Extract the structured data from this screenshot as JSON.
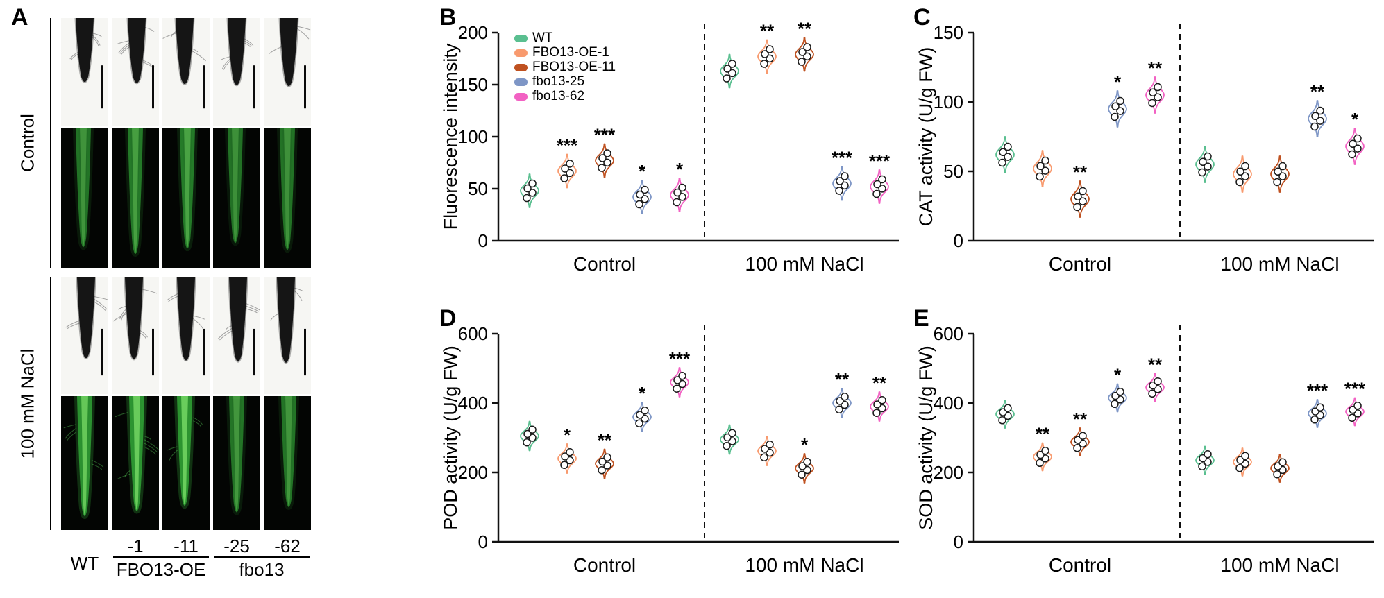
{
  "panels": {
    "A": {
      "label": "A",
      "conditions": [
        "Control",
        "100 mM NaCl"
      ],
      "col_labels": [
        "WT",
        "-1",
        "-11",
        "-25",
        "-62"
      ],
      "group_labels": [
        "FBO13-OE",
        "fbo13"
      ]
    },
    "B": {
      "label": "B"
    },
    "C": {
      "label": "C"
    },
    "D": {
      "label": "D"
    },
    "E": {
      "label": "E"
    }
  },
  "series": [
    {
      "label": "WT",
      "color": "#5abf90"
    },
    {
      "label": "FBO13-OE-1",
      "color": "#f89a6e"
    },
    {
      "label": "FBO13-OE-11",
      "color": "#bf5120"
    },
    {
      "label": "fbo13-25",
      "color": "#7e96c6"
    },
    {
      "label": "fbo13-62",
      "color": "#f261c3"
    }
  ],
  "chart_data": [
    {
      "panel": "B",
      "type": "violin",
      "legend": true,
      "ylabel": "Fluorescence intensity",
      "ylim": [
        0,
        200
      ],
      "yticks": [
        0,
        50,
        100,
        150,
        200
      ],
      "spread": 16,
      "group_labels": [
        "Control",
        "100 mM NaCl"
      ],
      "groups": [
        {
          "label": "Control",
          "values": [
            48,
            67,
            77,
            42,
            44
          ],
          "sig": [
            "",
            "***",
            "***",
            "*",
            "*"
          ]
        },
        {
          "label": "100 mM NaCl",
          "values": [
            163,
            177,
            179,
            55,
            52
          ],
          "sig": [
            "",
            "**",
            "**",
            "***",
            "***"
          ]
        }
      ]
    },
    {
      "panel": "C",
      "type": "violin",
      "legend": false,
      "ylabel": "CAT activity (U/g FW)",
      "ylim": [
        0,
        150
      ],
      "yticks": [
        0,
        50,
        100,
        150
      ],
      "spread": 13,
      "group_labels": [
        "Control",
        "100 mM NaCl"
      ],
      "groups": [
        {
          "label": "Control",
          "values": [
            62,
            52,
            30,
            95,
            105
          ],
          "sig": [
            "",
            "",
            "**",
            "*",
            "**"
          ]
        },
        {
          "label": "100 mM NaCl",
          "values": [
            55,
            48,
            48,
            88,
            68
          ],
          "sig": [
            "",
            "",
            "",
            "**",
            "*"
          ]
        }
      ]
    },
    {
      "panel": "D",
      "type": "violin",
      "legend": false,
      "ylabel": "POD activity (U/g FW)",
      "ylim": [
        0,
        600
      ],
      "yticks": [
        0,
        200,
        400,
        600
      ],
      "spread": 42,
      "group_labels": [
        "Control",
        "100 mM NaCl"
      ],
      "groups": [
        {
          "label": "Control",
          "values": [
            305,
            240,
            225,
            360,
            460
          ],
          "sig": [
            "",
            "*",
            "**",
            "*",
            "***"
          ]
        },
        {
          "label": "100 mM NaCl",
          "values": [
            295,
            262,
            212,
            400,
            390
          ],
          "sig": [
            "",
            "",
            "*",
            "**",
            "**"
          ]
        }
      ]
    },
    {
      "panel": "E",
      "type": "violin",
      "legend": false,
      "ylabel": "SOD activity (U/g FW)",
      "ylim": [
        0,
        600
      ],
      "yticks": [
        0,
        200,
        400,
        600
      ],
      "spread": 40,
      "group_labels": [
        "Control",
        "100 mM NaCl"
      ],
      "groups": [
        {
          "label": "Control",
          "values": [
            368,
            245,
            288,
            415,
            445
          ],
          "sig": [
            "",
            "**",
            "**",
            "*",
            "**"
          ]
        },
        {
          "label": "100 mM NaCl",
          "values": [
            235,
            230,
            212,
            370,
            375
          ],
          "sig": [
            "",
            "",
            "",
            "***",
            "***"
          ]
        }
      ]
    }
  ]
}
